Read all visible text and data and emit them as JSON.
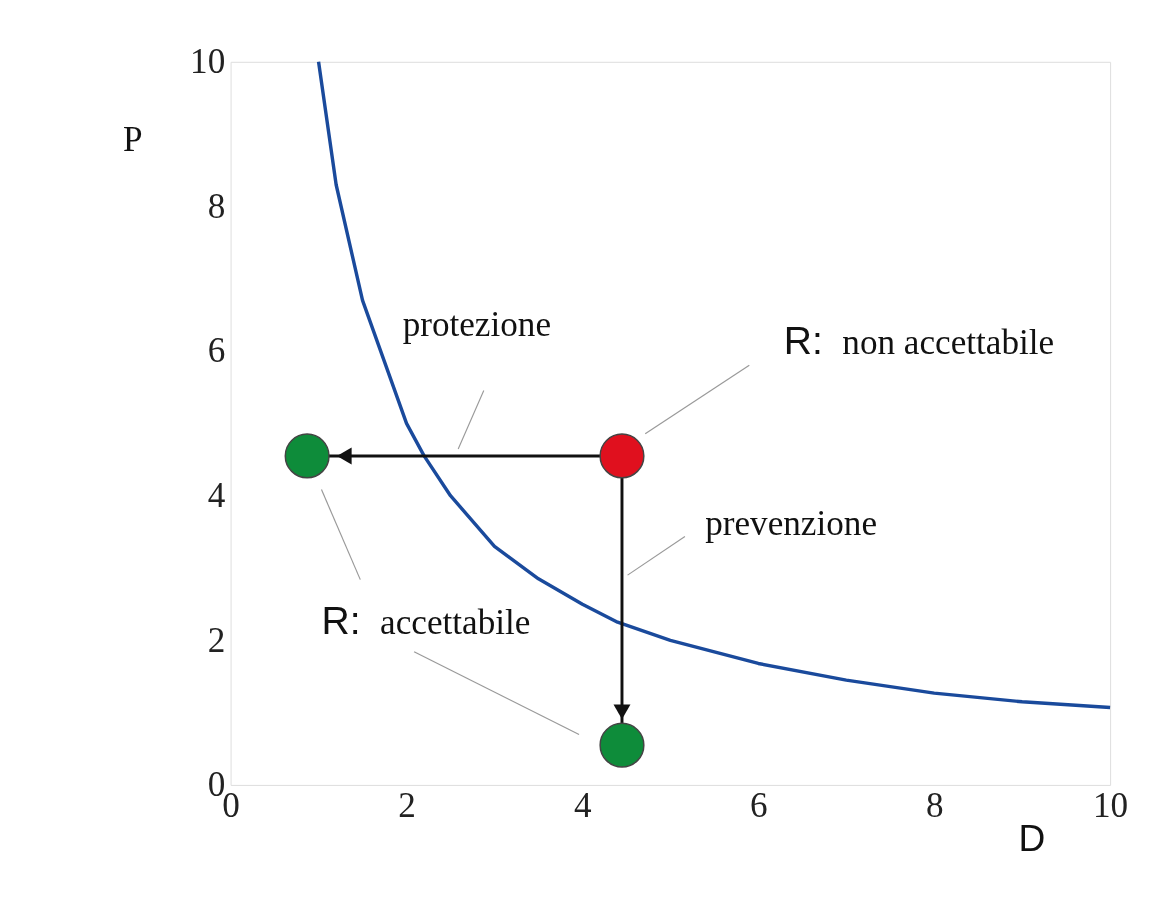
{
  "chart_data": {
    "type": "line",
    "xlabel": "D",
    "ylabel": "P",
    "xlim": [
      0,
      10
    ],
    "ylim": [
      0,
      10
    ],
    "xticks": [
      0,
      2,
      4,
      6,
      8,
      10
    ],
    "yticks": [
      0,
      2,
      4,
      6,
      8,
      10
    ],
    "grid": false,
    "series": [
      {
        "color": "#1a4a9c",
        "x": [
          1.0,
          1.2,
          1.5,
          2.0,
          2.2,
          2.5,
          3.0,
          3.5,
          4.0,
          4.4,
          5.0,
          6.0,
          7.0,
          8.0,
          9.0,
          10.0
        ],
        "values": [
          10.0,
          8.3,
          6.7,
          5.0,
          4.55,
          4.0,
          3.3,
          2.85,
          2.5,
          2.25,
          2.0,
          1.68,
          1.45,
          1.27,
          1.15,
          1.07
        ]
      },
      {
        "type": "scatter",
        "colors": [
          "#0e8c3a",
          "#e0101e",
          "#0e8c3a"
        ],
        "x": [
          0.87,
          4.45,
          4.45
        ],
        "values": [
          4.55,
          4.55,
          0.55
        ]
      }
    ],
    "annotations": [
      "protezione",
      "prevenzione",
      "R: non accettabile",
      "R: accettabile"
    ]
  }
}
